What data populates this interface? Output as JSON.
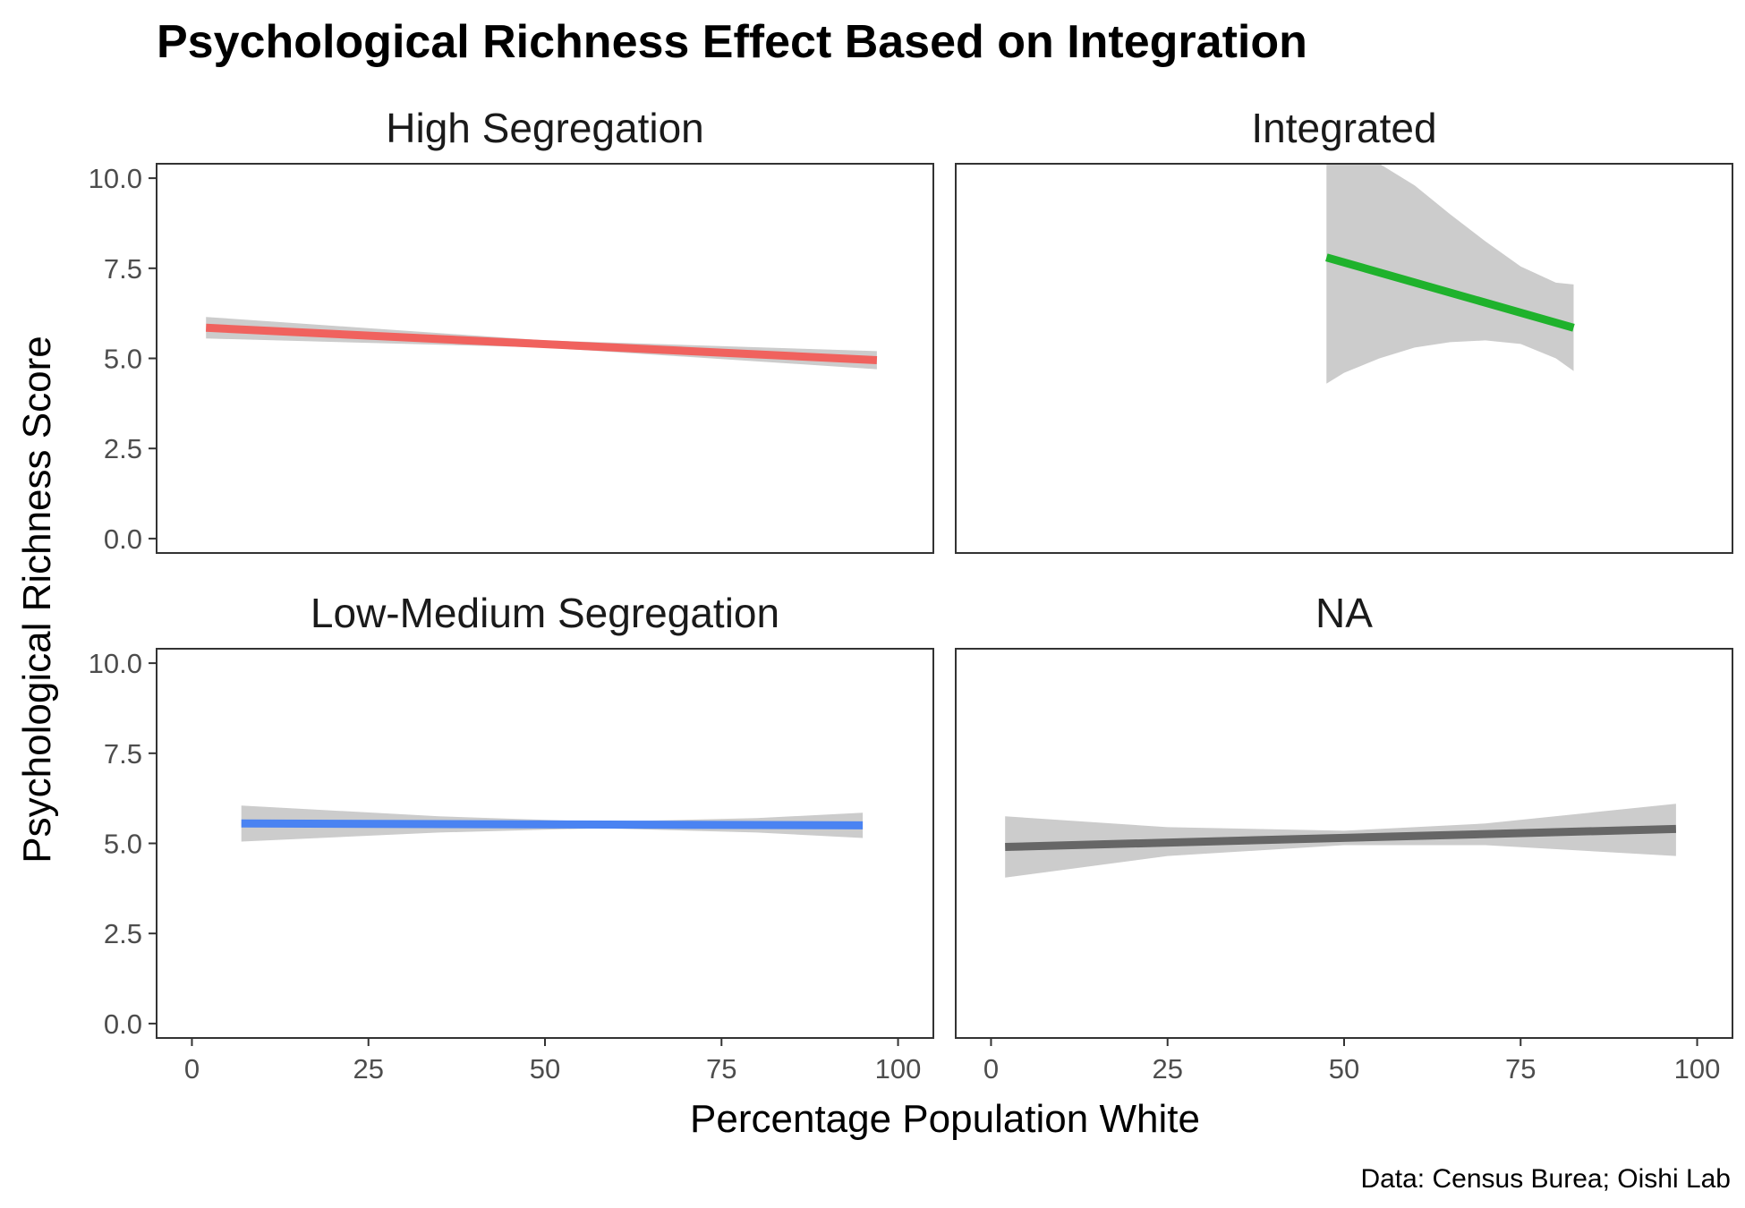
{
  "chart_data": {
    "type": "line",
    "title": "Psychological Richness Effect Based on Integration",
    "xlabel": "Percentage Population White",
    "ylabel": "Psychological Richness Score",
    "caption": "Data: Census Burea; Oishi Lab",
    "xlim": [
      -5,
      105
    ],
    "ylim": [
      -0.4,
      10.4
    ],
    "x_ticks": [
      0,
      25,
      50,
      75,
      100
    ],
    "x_tick_labels": [
      "0",
      "25",
      "50",
      "75",
      "100"
    ],
    "y_ticks": [
      0,
      2.5,
      5,
      7.5,
      10
    ],
    "y_tick_labels": [
      "0.0",
      "2.5",
      "5.0",
      "7.5",
      "10.0"
    ],
    "grid": false,
    "band_color": "#cccccc",
    "panels": [
      {
        "name": "High Segregation",
        "color": "#f0625e",
        "x": [
          2,
          97
        ],
        "y": [
          5.85,
          4.95
        ],
        "band_x": [
          2,
          50,
          97
        ],
        "band_low": [
          5.55,
          5.3,
          4.7
        ],
        "band_high": [
          6.15,
          5.5,
          5.2
        ]
      },
      {
        "name": "Integrated",
        "color": "#1fb22c",
        "x": [
          47.5,
          82.5
        ],
        "y": [
          7.8,
          5.85
        ],
        "band_x": [
          47.5,
          50,
          55,
          60,
          65,
          70,
          75,
          80,
          82.5
        ],
        "band_low": [
          4.3,
          4.6,
          5.0,
          5.3,
          5.45,
          5.5,
          5.4,
          5.0,
          4.65
        ],
        "band_high": [
          11.3,
          11.0,
          10.4,
          9.8,
          9.0,
          8.25,
          7.55,
          7.1,
          7.05
        ]
      },
      {
        "name": "Low-Medium Segregation",
        "color": "#4a83f2",
        "x": [
          7,
          95
        ],
        "y": [
          5.55,
          5.5
        ],
        "band_x": [
          7,
          35,
          58,
          80,
          95
        ],
        "band_low": [
          5.05,
          5.3,
          5.42,
          5.3,
          5.15
        ],
        "band_high": [
          6.05,
          5.75,
          5.6,
          5.7,
          5.85
        ]
      },
      {
        "name": "NA",
        "color": "#666666",
        "x": [
          2,
          97
        ],
        "y": [
          4.9,
          5.4
        ],
        "band_x": [
          2,
          25,
          50,
          70,
          97
        ],
        "band_low": [
          4.05,
          4.65,
          4.95,
          4.95,
          4.65
        ],
        "band_high": [
          5.75,
          5.45,
          5.35,
          5.55,
          6.1
        ]
      }
    ]
  }
}
